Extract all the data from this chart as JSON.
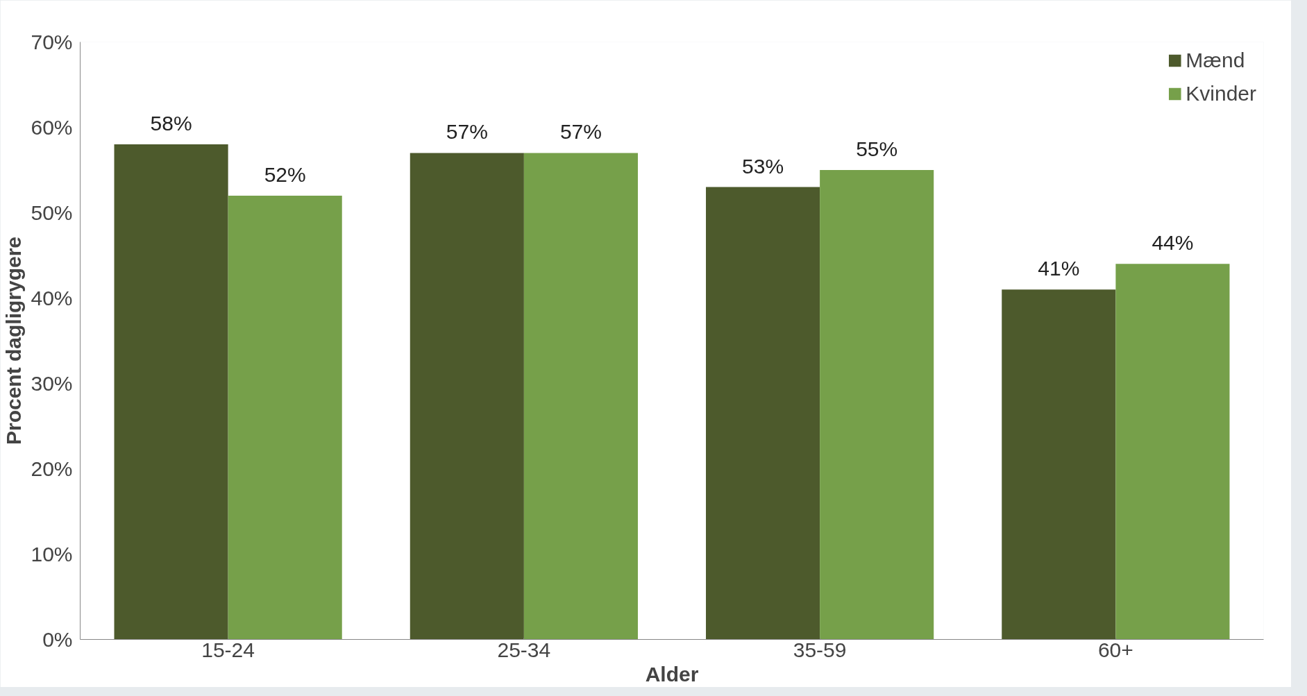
{
  "chart_data": {
    "type": "bar",
    "xlabel": "Alder",
    "ylabel": "Procent dagligrygere",
    "categories": [
      "15-24",
      "25-34",
      "35-59",
      "60+"
    ],
    "series": [
      {
        "name": "Mænd",
        "color": "#4d5a2c",
        "values": [
          58,
          57,
          53,
          41
        ],
        "value_labels": [
          "58%",
          "57%",
          "53%",
          "41%"
        ]
      },
      {
        "name": "Kvinder",
        "color": "#76a04a",
        "values": [
          52,
          57,
          55,
          44
        ],
        "value_labels": [
          "52%",
          "57%",
          "55%",
          "44%"
        ]
      }
    ],
    "ylim": [
      0,
      70
    ],
    "yticks": [
      {
        "value": 0,
        "label": "0%"
      },
      {
        "value": 10,
        "label": "10%"
      },
      {
        "value": 20,
        "label": "20%"
      },
      {
        "value": 30,
        "label": "30%"
      },
      {
        "value": 40,
        "label": "40%"
      },
      {
        "value": 50,
        "label": "50%"
      },
      {
        "value": 60,
        "label": "60%"
      },
      {
        "value": 70,
        "label": "70%"
      }
    ],
    "grid": false,
    "legend": "top right"
  }
}
